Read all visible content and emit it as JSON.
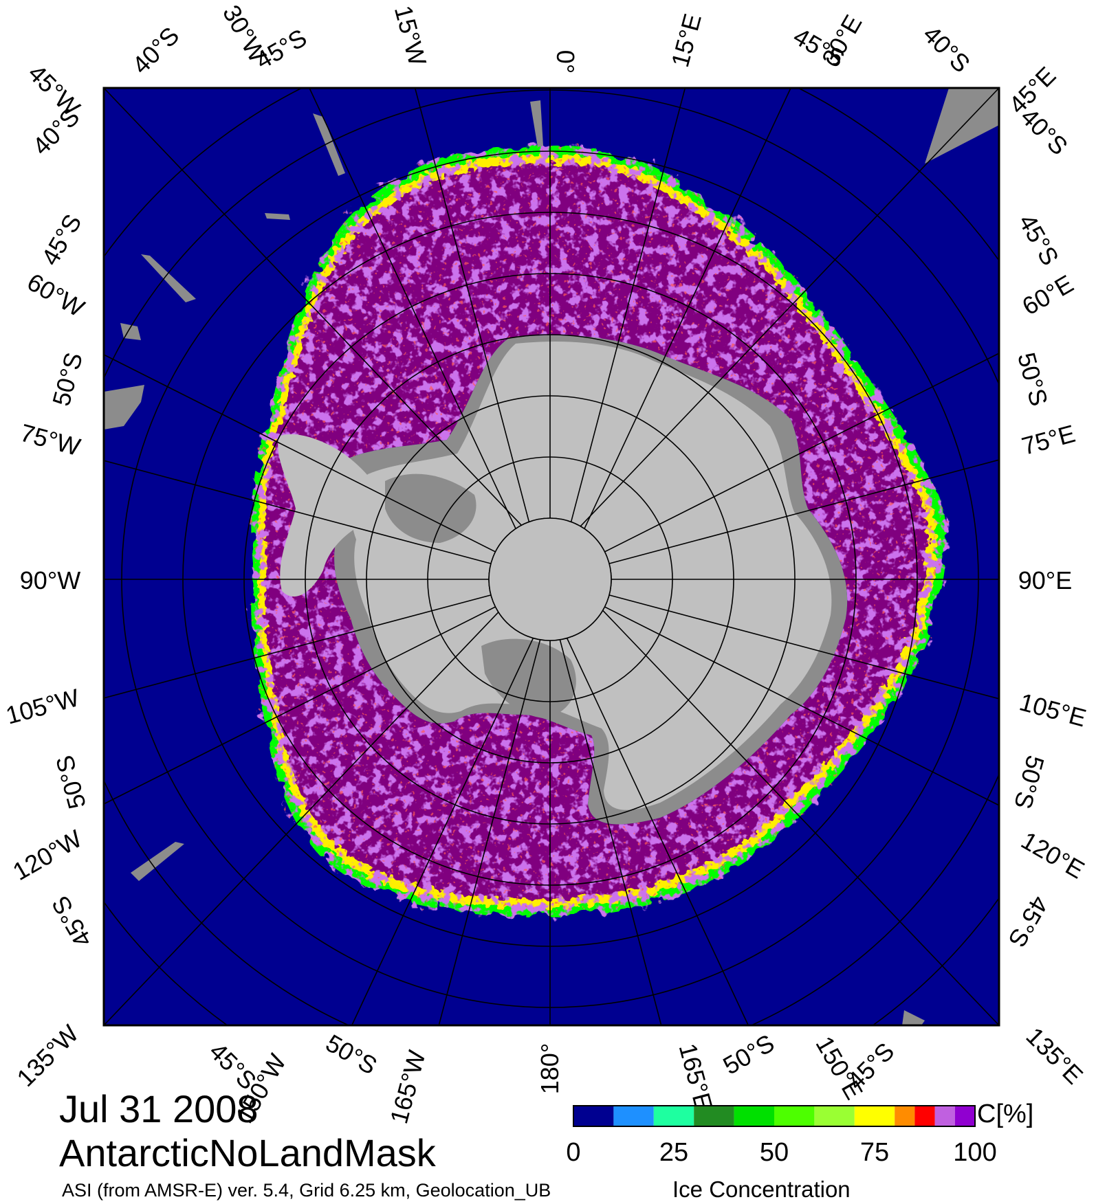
{
  "map": {
    "date": "Jul 31 2008",
    "product": "AntarcticNoLandMask",
    "source_text": "ASI (from AMSR-E) ver. 5.4,  Grid 6.25 km, Geolocation_UB",
    "variable_text": "Ice Concentration",
    "projection": "polar stereographic, south pole",
    "colors": {
      "ocean": "#000090",
      "land_ice": "#c0c0c0",
      "land": "#8c8c8c",
      "high_conc": "#80007f",
      "mid_conc": "#9a2bd8",
      "edge_yellow": "#ffef00",
      "edge_green": "#00ff00",
      "edge_red": "#ff0000",
      "graticule": "#000000"
    },
    "meridian_labels": {
      "top": [
        "45°W",
        "30°W",
        "15°W",
        "0°",
        "15°E",
        "30°E",
        "45°E"
      ],
      "bottom": [
        "135°W",
        "150°W",
        "165°W",
        "180°",
        "165°E",
        "150°E",
        "135°E"
      ],
      "left": [
        "60°W",
        "75°W",
        "90°W",
        "105°W",
        "120°W"
      ],
      "right": [
        "60°E",
        "75°E",
        "90°E",
        "105°E",
        "120°E"
      ]
    },
    "parallel_labels": {
      "top": [
        "40°S",
        "45°S",
        "45°S",
        "40°S"
      ],
      "left": [
        "40°S",
        "45°S",
        "50°S",
        "50°S",
        "45°S"
      ],
      "right": [
        "40°S",
        "45°S",
        "50°S",
        "50°S",
        "45°S"
      ],
      "bottom": [
        "45°S",
        "50°S",
        "50°S",
        "45°S"
      ]
    }
  },
  "colorbar": {
    "unit": "C[%]",
    "ticks": [
      "0",
      "25",
      "50",
      "75",
      "100"
    ],
    "bins": [
      {
        "from": 0,
        "to": 10,
        "color": "#000090"
      },
      {
        "from": 10,
        "to": 20,
        "color": "#1e90ff"
      },
      {
        "from": 20,
        "to": 30,
        "color": "#1effa0"
      },
      {
        "from": 30,
        "to": 40,
        "color": "#228b22"
      },
      {
        "from": 40,
        "to": 50,
        "color": "#00e000"
      },
      {
        "from": 50,
        "to": 60,
        "color": "#4dff00"
      },
      {
        "from": 60,
        "to": 70,
        "color": "#9aff33"
      },
      {
        "from": 70,
        "to": 80,
        "color": "#ffff00"
      },
      {
        "from": 80,
        "to": 85,
        "color": "#ff8c00"
      },
      {
        "from": 85,
        "to": 90,
        "color": "#ff0000"
      },
      {
        "from": 90,
        "to": 95,
        "color": "#c060e0"
      },
      {
        "from": 95,
        "to": 100,
        "color": "#9000d0"
      }
    ]
  }
}
